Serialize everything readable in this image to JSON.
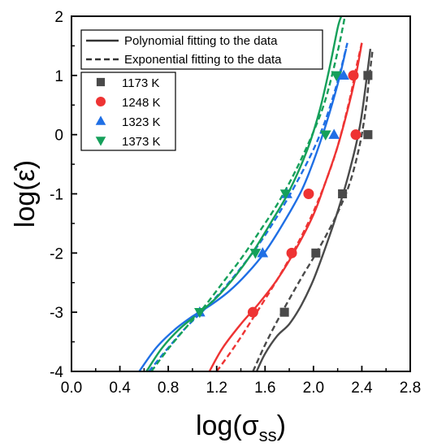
{
  "chart_data": {
    "type": "scatter",
    "title": "",
    "xlabel": "log(σss)",
    "ylabel": "log(ε̇)",
    "xlim": [
      0.0,
      2.8
    ],
    "ylim": [
      -4,
      2
    ],
    "xticks": [
      "0.0",
      "0.4",
      "0.8",
      "1.2",
      "1.6",
      "2.0",
      "2.4",
      "2.8"
    ],
    "yticks": [
      "-4",
      "-3",
      "-2",
      "-1",
      "0",
      "1",
      "2"
    ],
    "grid": false,
    "fit_legend": [
      {
        "label": "Polynomial fitting to the data",
        "style": "solid"
      },
      {
        "label": "Exponential fitting to the data",
        "style": "dashed"
      }
    ],
    "series": [
      {
        "name": "1173 K",
        "color": "#4a4a4a",
        "marker": "square",
        "points": [
          [
            1.76,
            -3
          ],
          [
            2.02,
            -2
          ],
          [
            2.24,
            -1
          ],
          [
            2.45,
            0
          ],
          [
            2.45,
            1
          ]
        ]
      },
      {
        "name": "1248 K",
        "color": "#ee3333",
        "marker": "circle",
        "points": [
          [
            1.5,
            -3
          ],
          [
            1.82,
            -2
          ],
          [
            1.96,
            -1
          ],
          [
            2.35,
            0
          ],
          [
            2.33,
            1
          ]
        ]
      },
      {
        "name": "1323 K",
        "color": "#1f6fe5",
        "marker": "triangle-up",
        "points": [
          [
            1.06,
            -3
          ],
          [
            1.58,
            -2
          ],
          [
            1.78,
            -1
          ],
          [
            2.17,
            0
          ],
          [
            2.25,
            1
          ]
        ]
      },
      {
        "name": "1373 K",
        "color": "#15a05a",
        "marker": "triangle-down",
        "points": [
          [
            1.06,
            -3
          ],
          [
            1.52,
            -2
          ],
          [
            1.77,
            -1
          ],
          [
            2.1,
            0
          ],
          [
            2.19,
            1
          ]
        ]
      }
    ],
    "fits": [
      {
        "series": "1173 K",
        "style": "solid",
        "points": [
          [
            1.53,
            -4
          ],
          [
            1.6,
            -3.7
          ],
          [
            1.7,
            -3.4
          ],
          [
            1.8,
            -3.2
          ],
          [
            1.9,
            -2.88
          ],
          [
            2.0,
            -2.45
          ],
          [
            2.1,
            -1.9
          ],
          [
            2.2,
            -1.3
          ],
          [
            2.3,
            -0.6
          ],
          [
            2.38,
            0.1
          ],
          [
            2.43,
            0.8
          ],
          [
            2.47,
            1.45
          ]
        ]
      },
      {
        "series": "1173 K",
        "style": "dashed",
        "points": [
          [
            1.5,
            -4
          ],
          [
            1.6,
            -3.55
          ],
          [
            1.7,
            -3.15
          ],
          [
            1.8,
            -2.78
          ],
          [
            1.9,
            -2.42
          ],
          [
            2.0,
            -2.08
          ],
          [
            2.1,
            -1.72
          ],
          [
            2.2,
            -1.32
          ],
          [
            2.3,
            -0.82
          ],
          [
            2.38,
            -0.2
          ],
          [
            2.43,
            0.4
          ],
          [
            2.46,
            0.95
          ],
          [
            2.49,
            1.45
          ]
        ]
      },
      {
        "series": "1248 K",
        "style": "solid",
        "points": [
          [
            1.14,
            -4
          ],
          [
            1.25,
            -3.6
          ],
          [
            1.4,
            -3.2
          ],
          [
            1.55,
            -2.85
          ],
          [
            1.7,
            -2.45
          ],
          [
            1.85,
            -1.95
          ],
          [
            2.0,
            -1.35
          ],
          [
            2.1,
            -0.8
          ],
          [
            2.2,
            -0.2
          ],
          [
            2.28,
            0.4
          ],
          [
            2.35,
            1.0
          ],
          [
            2.4,
            1.55
          ]
        ]
      },
      {
        "series": "1248 K",
        "style": "dashed",
        "points": [
          [
            1.2,
            -4
          ],
          [
            1.3,
            -3.72
          ],
          [
            1.4,
            -3.42
          ],
          [
            1.5,
            -3.1
          ],
          [
            1.6,
            -2.78
          ],
          [
            1.7,
            -2.45
          ],
          [
            1.8,
            -2.1
          ],
          [
            1.9,
            -1.72
          ],
          [
            2.0,
            -1.3
          ],
          [
            2.1,
            -0.8
          ],
          [
            2.2,
            -0.2
          ],
          [
            2.3,
            0.6
          ],
          [
            2.35,
            1.1
          ],
          [
            2.4,
            1.55
          ]
        ]
      },
      {
        "series": "1323 K",
        "style": "solid",
        "points": [
          [
            0.56,
            -4
          ],
          [
            0.7,
            -3.6
          ],
          [
            0.85,
            -3.3
          ],
          [
            1.0,
            -3.07
          ],
          [
            1.15,
            -2.88
          ],
          [
            1.3,
            -2.65
          ],
          [
            1.45,
            -2.35
          ],
          [
            1.6,
            -1.98
          ],
          [
            1.75,
            -1.5
          ],
          [
            1.9,
            -0.95
          ],
          [
            2.0,
            -0.45
          ],
          [
            2.1,
            0.15
          ],
          [
            2.2,
            0.85
          ],
          [
            2.27,
            1.45
          ]
        ]
      },
      {
        "series": "1323 K",
        "style": "dashed",
        "points": [
          [
            0.64,
            -4
          ],
          [
            0.8,
            -3.6
          ],
          [
            0.95,
            -3.25
          ],
          [
            1.1,
            -2.95
          ],
          [
            1.25,
            -2.62
          ],
          [
            1.4,
            -2.25
          ],
          [
            1.55,
            -1.85
          ],
          [
            1.7,
            -1.38
          ],
          [
            1.85,
            -0.85
          ],
          [
            2.0,
            -0.25
          ],
          [
            2.1,
            0.25
          ],
          [
            2.2,
            0.9
          ],
          [
            2.28,
            1.55
          ]
        ]
      },
      {
        "series": "1373 K",
        "style": "solid",
        "points": [
          [
            0.62,
            -4
          ],
          [
            0.75,
            -3.6
          ],
          [
            0.9,
            -3.27
          ],
          [
            1.05,
            -3.02
          ],
          [
            1.2,
            -2.75
          ],
          [
            1.35,
            -2.4
          ],
          [
            1.5,
            -1.98
          ],
          [
            1.65,
            -1.48
          ],
          [
            1.8,
            -0.95
          ],
          [
            1.95,
            -0.25
          ],
          [
            2.05,
            0.4
          ],
          [
            2.13,
            1.1
          ],
          [
            2.2,
            1.8
          ],
          [
            2.23,
            2.0
          ]
        ]
      },
      {
        "series": "1373 K",
        "style": "dashed",
        "points": [
          [
            0.66,
            -4
          ],
          [
            0.8,
            -3.62
          ],
          [
            0.95,
            -3.25
          ],
          [
            1.1,
            -2.9
          ],
          [
            1.25,
            -2.5
          ],
          [
            1.4,
            -2.1
          ],
          [
            1.55,
            -1.65
          ],
          [
            1.7,
            -1.18
          ],
          [
            1.85,
            -0.62
          ],
          [
            2.0,
            0.05
          ],
          [
            2.1,
            0.6
          ],
          [
            2.2,
            1.4
          ],
          [
            2.26,
            2.0
          ]
        ]
      }
    ]
  }
}
